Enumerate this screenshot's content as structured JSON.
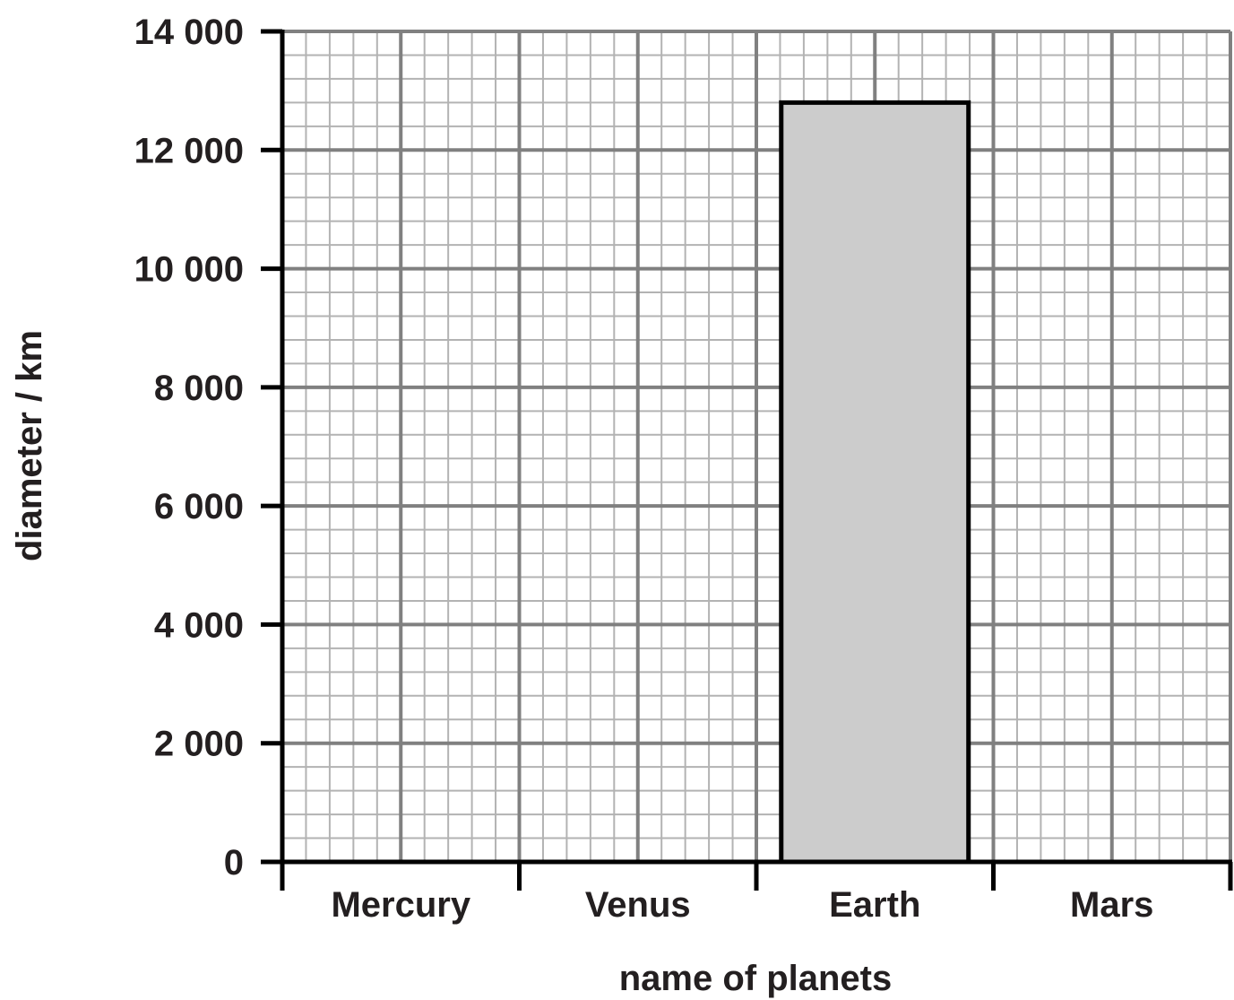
{
  "chart_data": {
    "type": "bar",
    "categories": [
      "Mercury",
      "Venus",
      "Earth",
      "Mars"
    ],
    "series": [
      {
        "values": [
          null,
          null,
          12800,
          null
        ]
      }
    ],
    "xlabel": "name of planets",
    "ylabel": "diameter / km",
    "ylim": [
      0,
      14000
    ],
    "y_ticks": [
      0,
      2000,
      4000,
      6000,
      8000,
      10000,
      12000,
      14000
    ],
    "y_tick_labels": [
      "0",
      "2 000",
      "4 000",
      "6 000",
      "8 000",
      "10 000",
      "12 000",
      "14 000"
    ],
    "grid": true,
    "minor_grid_per_major": 5,
    "colors": {
      "bar_fill": "#cccccc",
      "bar_stroke": "#000000",
      "major_grid": "#808080",
      "minor_grid": "#b3b3b3",
      "axis": "#000000",
      "text": "#231f20"
    }
  }
}
